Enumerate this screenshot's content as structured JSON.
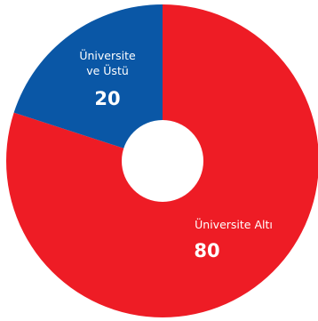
{
  "chart_data": {
    "type": "pie",
    "title": "",
    "slices": [
      {
        "label_lines": [
          "Üniversite Altı"
        ],
        "value": 80,
        "value_label": "80",
        "color": "#ee1c25"
      },
      {
        "label_lines": [
          "Üniversite",
          "ve Üstü"
        ],
        "value": 20,
        "value_label": "20",
        "color": "#0a57a6"
      }
    ],
    "start_angle_deg": 0,
    "direction": "clockwise",
    "legend": "none"
  },
  "colors": {
    "background": "#ffffff",
    "hole": "#ffffff",
    "label_text": "#ffffff"
  }
}
